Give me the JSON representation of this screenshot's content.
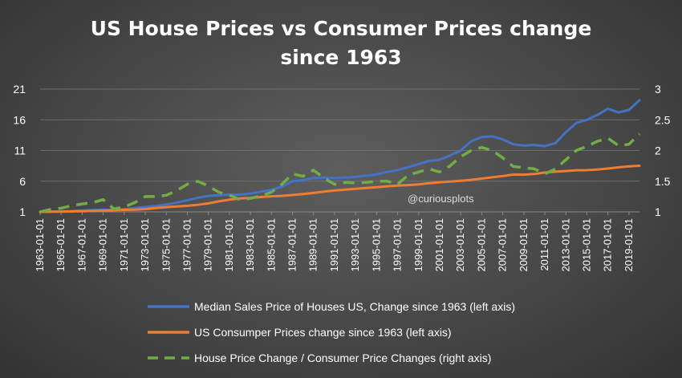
{
  "chart_data": {
    "type": "line",
    "title_lines": [
      "US House Prices vs Consumer Prices change",
      "since 1963"
    ],
    "watermark": "@curiousplots",
    "xlabel": "",
    "ylabel": "",
    "ylim": [
      1,
      21
    ],
    "y_ticks": [
      "1",
      "6",
      "11",
      "16",
      "21"
    ],
    "y2lim": [
      1,
      3
    ],
    "y2_ticks": [
      "1",
      "1.5",
      "2",
      "2.5",
      "3"
    ],
    "grid": true,
    "legend_position": "bottom",
    "x_start_year": 1963,
    "x_end_year": 2020,
    "x_labels": [
      "1963-01-01",
      "1965-01-01",
      "1967-01-01",
      "1969-01-01",
      "1971-01-01",
      "1973-01-01",
      "1975-01-01",
      "1977-01-01",
      "1979-01-01",
      "1981-01-01",
      "1983-01-01",
      "1985-01-01",
      "1987-01-01",
      "1989-01-01",
      "1991-01-01",
      "1993-01-01",
      "1995-01-01",
      "1997-01-01",
      "1999-01-01",
      "2001-01-01",
      "2003-01-01",
      "2005-01-01",
      "2007-01-01",
      "2009-01-01",
      "2011-01-01",
      "2013-01-01",
      "2015-01-01",
      "2017-01-01",
      "2019-01-01"
    ],
    "series": [
      {
        "name": "Median Sales Price of Houses US, Change since 1963 (left axis)",
        "axis": "left",
        "color": "#4472C4",
        "style": "solid",
        "x": [
          1963,
          1964,
          1965,
          1966,
          1967,
          1968,
          1969,
          1970,
          1971,
          1972,
          1973,
          1974,
          1975,
          1976,
          1977,
          1978,
          1979,
          1980,
          1981,
          1982,
          1983,
          1984,
          1985,
          1986,
          1987,
          1988,
          1989,
          1990,
          1991,
          1992,
          1993,
          1994,
          1995,
          1996,
          1997,
          1998,
          1999,
          2000,
          2001,
          2002,
          2003,
          2004,
          2005,
          2006,
          2007,
          2008,
          2009,
          2010,
          2011,
          2012,
          2013,
          2014,
          2015,
          2016,
          2017,
          2018,
          2019,
          2020
        ],
        "values": [
          1.0,
          1.05,
          1.1,
          1.15,
          1.22,
          1.3,
          1.35,
          1.3,
          1.45,
          1.6,
          1.8,
          1.95,
          2.2,
          2.5,
          2.9,
          3.3,
          3.6,
          3.7,
          3.8,
          3.8,
          4.0,
          4.3,
          4.6,
          5.1,
          6.0,
          6.2,
          6.5,
          6.6,
          6.5,
          6.6,
          6.7,
          6.9,
          7.1,
          7.5,
          7.8,
          8.3,
          8.8,
          9.3,
          9.5,
          10.2,
          11.0,
          12.5,
          13.2,
          13.3,
          12.8,
          12.0,
          11.8,
          11.9,
          11.7,
          12.2,
          14.0,
          15.5,
          16.0,
          16.8,
          17.8,
          17.2,
          17.6,
          19.2
        ]
      },
      {
        "name": "US Consumper Prices change since 1963  (left axis)",
        "axis": "left",
        "color": "#ED7D31",
        "style": "solid",
        "x": [
          1963,
          1964,
          1965,
          1966,
          1967,
          1968,
          1969,
          1970,
          1971,
          1972,
          1973,
          1974,
          1975,
          1976,
          1977,
          1978,
          1979,
          1980,
          1981,
          1982,
          1983,
          1984,
          1985,
          1986,
          1987,
          1988,
          1989,
          1990,
          1991,
          1992,
          1993,
          1994,
          1995,
          1996,
          1997,
          1998,
          1999,
          2000,
          2001,
          2002,
          2003,
          2004,
          2005,
          2006,
          2007,
          2008,
          2009,
          2010,
          2011,
          2012,
          2013,
          2014,
          2015,
          2016,
          2017,
          2018,
          2019,
          2020
        ],
        "values": [
          1.0,
          1.01,
          1.03,
          1.06,
          1.09,
          1.14,
          1.2,
          1.27,
          1.33,
          1.37,
          1.46,
          1.62,
          1.77,
          1.87,
          1.99,
          2.15,
          2.39,
          2.71,
          2.99,
          3.18,
          3.28,
          3.42,
          3.54,
          3.61,
          3.74,
          3.9,
          4.08,
          4.3,
          4.48,
          4.62,
          4.75,
          4.88,
          5.02,
          5.17,
          5.29,
          5.37,
          5.49,
          5.67,
          5.83,
          5.93,
          6.06,
          6.22,
          6.43,
          6.64,
          6.83,
          7.08,
          7.06,
          7.17,
          7.4,
          7.55,
          7.66,
          7.79,
          7.8,
          7.9,
          8.06,
          8.26,
          8.41,
          8.52
        ]
      },
      {
        "name": "House Price Change / Consumer Price Changes (right axis)",
        "axis": "right",
        "color": "#70AD47",
        "style": "dashed",
        "x": [
          1963,
          1964,
          1965,
          1966,
          1967,
          1968,
          1969,
          1970,
          1971,
          1972,
          1973,
          1974,
          1975,
          1976,
          1977,
          1978,
          1979,
          1980,
          1981,
          1982,
          1983,
          1984,
          1985,
          1986,
          1987,
          1988,
          1989,
          1990,
          1991,
          1992,
          1993,
          1994,
          1995,
          1996,
          1997,
          1998,
          1999,
          2000,
          2001,
          2002,
          2003,
          2004,
          2005,
          2006,
          2007,
          2008,
          2009,
          2010,
          2011,
          2012,
          2013,
          2014,
          2015,
          2016,
          2017,
          2018,
          2019,
          2020
        ],
        "values": [
          1.0,
          1.04,
          1.06,
          1.1,
          1.13,
          1.15,
          1.2,
          1.05,
          1.08,
          1.15,
          1.25,
          1.25,
          1.27,
          1.35,
          1.45,
          1.5,
          1.42,
          1.32,
          1.27,
          1.2,
          1.22,
          1.26,
          1.32,
          1.45,
          1.62,
          1.58,
          1.68,
          1.55,
          1.45,
          1.48,
          1.47,
          1.48,
          1.5,
          1.5,
          1.45,
          1.6,
          1.65,
          1.7,
          1.65,
          1.75,
          1.9,
          2.0,
          2.05,
          2.0,
          1.88,
          1.74,
          1.72,
          1.7,
          1.62,
          1.7,
          1.85,
          2.0,
          2.07,
          2.15,
          2.2,
          2.08,
          2.1,
          2.27
        ]
      }
    ]
  }
}
